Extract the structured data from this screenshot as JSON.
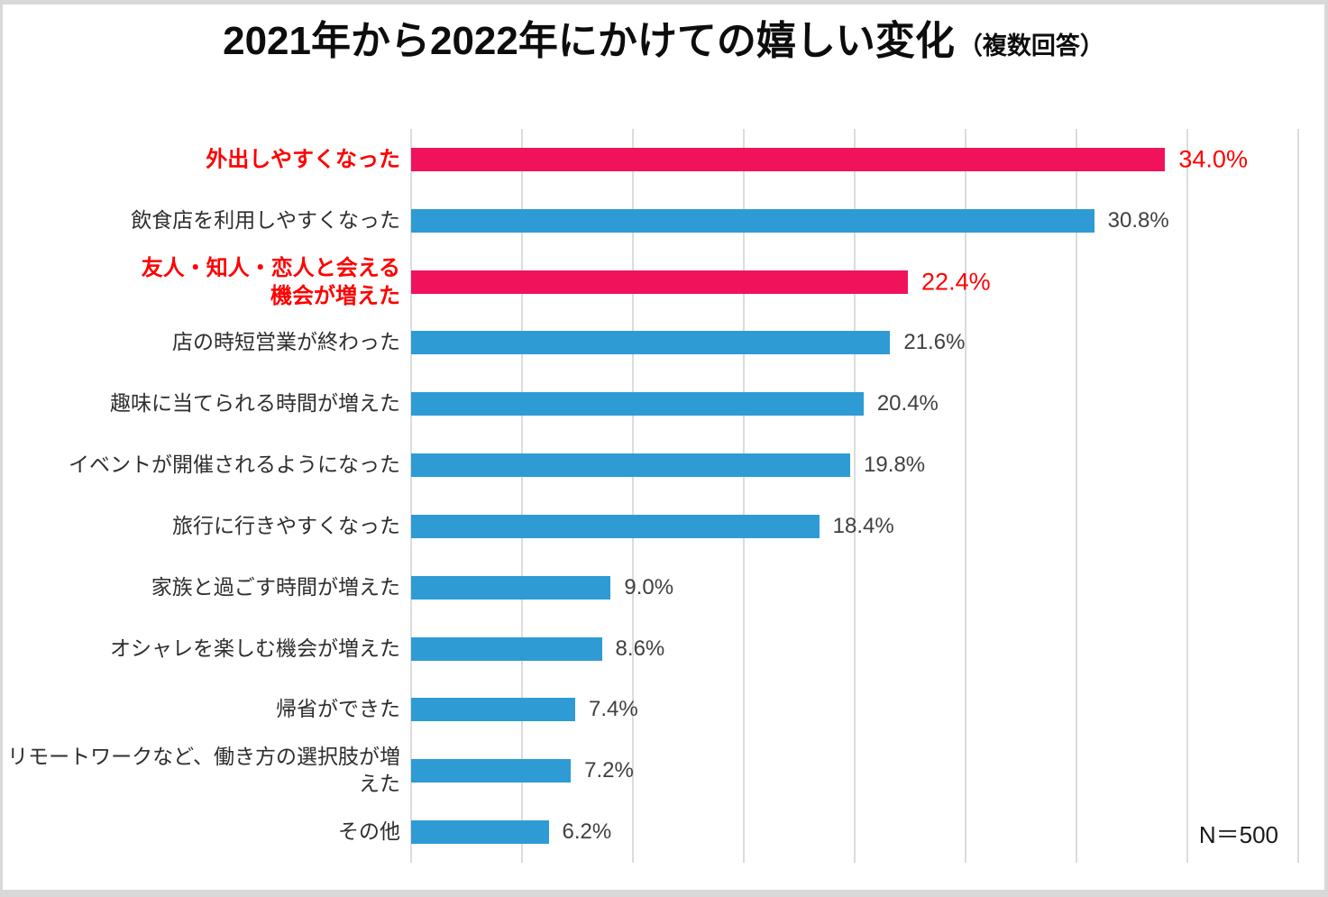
{
  "chart_data": {
    "type": "bar",
    "orientation": "horizontal",
    "title": "2021年から2022年にかけての嬉しい変化",
    "subtitle": "（複数回答）",
    "n_label": "N＝500",
    "axis_max": 40,
    "gridline_interval": 5,
    "grid": true,
    "legend": false,
    "colors": {
      "bar_default": "#2E9BD5",
      "bar_highlight": "#F0135C",
      "label_default": "#2e2e2e",
      "label_highlight": "#FF0000",
      "value_default": "#404040",
      "value_highlight": "#FF0000",
      "gridline": "#dcdcdc"
    },
    "items": [
      {
        "label": "外出しやすくなった",
        "value": 34.0,
        "value_label": "34.0%",
        "highlight": true
      },
      {
        "label": "飲食店を利用しやすくなった",
        "value": 30.8,
        "value_label": "30.8%",
        "highlight": false
      },
      {
        "label": "友人・知人・恋人と会える\n機会が増えた",
        "value": 22.4,
        "value_label": "22.4%",
        "highlight": true
      },
      {
        "label": "店の時短営業が終わった",
        "value": 21.6,
        "value_label": "21.6%",
        "highlight": false
      },
      {
        "label": "趣味に当てられる時間が増えた",
        "value": 20.4,
        "value_label": "20.4%",
        "highlight": false
      },
      {
        "label": "イベントが開催されるようになった",
        "value": 19.8,
        "value_label": "19.8%",
        "highlight": false
      },
      {
        "label": "旅行に行きやすくなった",
        "value": 18.4,
        "value_label": "18.4%",
        "highlight": false
      },
      {
        "label": "家族と過ごす時間が増えた",
        "value": 9.0,
        "value_label": "9.0%",
        "highlight": false
      },
      {
        "label": "オシャレを楽しむ機会が増えた",
        "value": 8.6,
        "value_label": "8.6%",
        "highlight": false
      },
      {
        "label": "帰省ができた",
        "value": 7.4,
        "value_label": "7.4%",
        "highlight": false
      },
      {
        "label": "リモートワークなど、働き方の選択肢が増えた",
        "value": 7.2,
        "value_label": "7.2%",
        "highlight": false
      },
      {
        "label": "その他",
        "value": 6.2,
        "value_label": "6.2%",
        "highlight": false
      }
    ]
  }
}
